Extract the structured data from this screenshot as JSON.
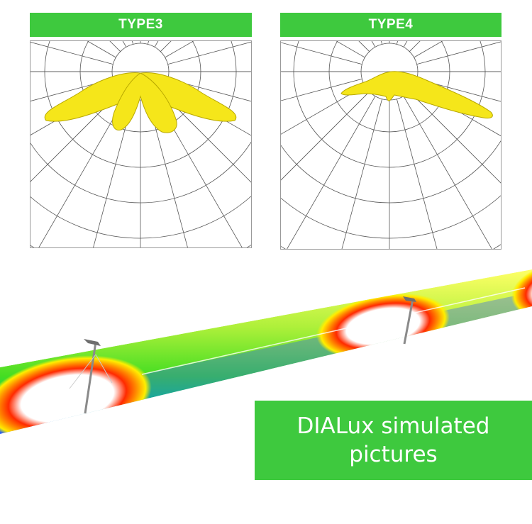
{
  "panels": [
    {
      "id": "type3",
      "title": "TYPE3"
    },
    {
      "id": "type4",
      "title": "TYPE4"
    }
  ],
  "caption": {
    "line1": "DIALux simulated",
    "line2": "pictures"
  },
  "colors": {
    "header_green": "#3ec93e",
    "distribution_fill": "#f5e61a",
    "distribution_stroke": "#b8a800",
    "grid": "#555555",
    "heatmap_scale": [
      "#ff0000",
      "#ff8c00",
      "#ffff00",
      "#44dd22",
      "#00cc88",
      "#2255ff"
    ]
  }
}
